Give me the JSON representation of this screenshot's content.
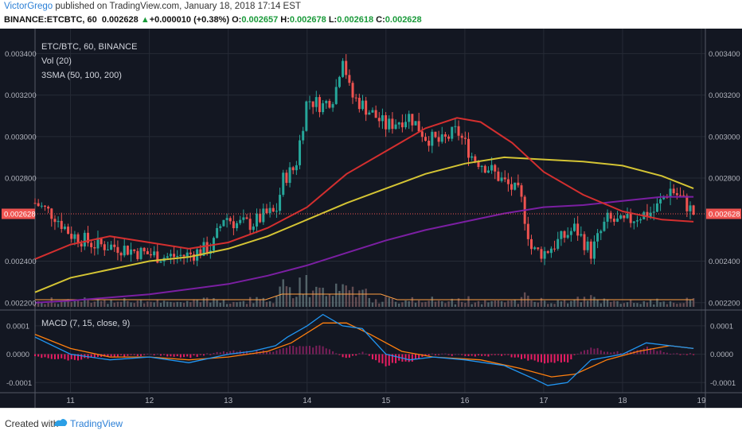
{
  "header": {
    "user": "VictorGrego",
    "published": " published on TradingView.com, January 18, 2018 17:14 EST",
    "symbol": "BINANCE:ETCBTC, 60",
    "last": "0.002628",
    "change": "+0.000010 (+0.38%)",
    "o_label": "O:",
    "o_value": "0.002657",
    "h_label": "H:",
    "h_value": "0.002678",
    "l_label": "L:",
    "l_value": "0.002618",
    "c_label": "C:",
    "c_value": "0.002628"
  },
  "legend": {
    "pair": "ETC/BTC, 60, BINANCE",
    "vol": "Vol (20)",
    "sma": "3SMA (50, 100, 200)",
    "macd": "MACD (7, 15, close, 9)"
  },
  "price_tag": "0.002628",
  "footer": {
    "created": "Created with",
    "brand": "TradingView"
  },
  "colors": {
    "background": "#131722",
    "up": "#26a69a",
    "down": "#ef5350",
    "sma50": "#d32f2f",
    "sma100": "#d4c434",
    "sma200": "#7b1fa2",
    "macd": "#2196f3",
    "signal": "#ff7f0e",
    "hist_pos": "#7b1f5a",
    "hist_neg": "#e91e63"
  },
  "chart_data": {
    "type": "candlestick",
    "price_axis": {
      "ticks": [
        "0.003400",
        "0.003200",
        "0.003000",
        "0.002800",
        "0.002400",
        "0.002200"
      ],
      "tick_values": [
        0.0034,
        0.0032,
        0.003,
        0.0028,
        0.0024,
        0.0022
      ],
      "range": [
        0.00218,
        0.00352
      ]
    },
    "macd_axis": {
      "ticks": [
        "0.0001",
        "0.0000",
        "-0.0001"
      ],
      "tick_values": [
        0.0001,
        0,
        -0.0001
      ],
      "range": [
        -0.00013,
        0.00015
      ]
    },
    "x_ticks": [
      "11",
      "12",
      "13",
      "14",
      "15",
      "16",
      "17",
      "18",
      "19"
    ],
    "x_tick_days": [
      11,
      12,
      13,
      14,
      15,
      16,
      17,
      18,
      19
    ],
    "x_range": [
      10.55,
      19.05
    ],
    "price_path": [
      [
        10.55,
        0.00268
      ],
      [
        10.8,
        0.00262
      ],
      [
        11.0,
        0.00253
      ],
      [
        11.3,
        0.00248
      ],
      [
        11.6,
        0.00247
      ],
      [
        11.9,
        0.00244
      ],
      [
        12.2,
        0.00242
      ],
      [
        12.5,
        0.00243
      ],
      [
        12.8,
        0.00247
      ],
      [
        12.95,
        0.00262
      ],
      [
        13.1,
        0.00258
      ],
      [
        13.3,
        0.00258
      ],
      [
        13.5,
        0.00263
      ],
      [
        13.6,
        0.00263
      ],
      [
        13.7,
        0.0028
      ],
      [
        13.85,
        0.00285
      ],
      [
        14.0,
        0.00318
      ],
      [
        14.2,
        0.00315
      ],
      [
        14.35,
        0.0032
      ],
      [
        14.45,
        0.0034
      ],
      [
        14.55,
        0.0032
      ],
      [
        14.8,
        0.00312
      ],
      [
        15.0,
        0.00305
      ],
      [
        15.3,
        0.0031
      ],
      [
        15.5,
        0.003
      ],
      [
        15.7,
        0.00297
      ],
      [
        15.9,
        0.00303
      ],
      [
        16.1,
        0.0029
      ],
      [
        16.3,
        0.00285
      ],
      [
        16.5,
        0.00278
      ],
      [
        16.7,
        0.00272
      ],
      [
        16.85,
        0.00245
      ],
      [
        17.0,
        0.00244
      ],
      [
        17.2,
        0.0025
      ],
      [
        17.4,
        0.00256
      ],
      [
        17.6,
        0.00244
      ],
      [
        17.8,
        0.0026
      ],
      [
        18.0,
        0.00258
      ],
      [
        18.2,
        0.00262
      ],
      [
        18.4,
        0.00264
      ],
      [
        18.6,
        0.00275
      ],
      [
        18.75,
        0.0027
      ],
      [
        18.9,
        0.00263
      ]
    ],
    "sma50": [
      [
        10.55,
        0.00241
      ],
      [
        11.0,
        0.00248
      ],
      [
        11.5,
        0.00252
      ],
      [
        12.0,
        0.00249
      ],
      [
        12.5,
        0.00246
      ],
      [
        13.0,
        0.00249
      ],
      [
        13.5,
        0.00256
      ],
      [
        14.0,
        0.00266
      ],
      [
        14.5,
        0.00282
      ],
      [
        15.0,
        0.00293
      ],
      [
        15.5,
        0.00304
      ],
      [
        15.9,
        0.00309
      ],
      [
        16.2,
        0.00307
      ],
      [
        16.6,
        0.00297
      ],
      [
        17.0,
        0.00283
      ],
      [
        17.5,
        0.00272
      ],
      [
        18.0,
        0.00264
      ],
      [
        18.5,
        0.0026
      ],
      [
        18.9,
        0.00259
      ]
    ],
    "sma100": [
      [
        10.55,
        0.00225
      ],
      [
        11.0,
        0.00232
      ],
      [
        11.5,
        0.00236
      ],
      [
        12.0,
        0.0024
      ],
      [
        12.5,
        0.00242
      ],
      [
        13.0,
        0.00246
      ],
      [
        13.5,
        0.00252
      ],
      [
        14.0,
        0.0026
      ],
      [
        14.5,
        0.00268
      ],
      [
        15.0,
        0.00275
      ],
      [
        15.5,
        0.00282
      ],
      [
        16.0,
        0.00287
      ],
      [
        16.5,
        0.0029
      ],
      [
        17.0,
        0.00289
      ],
      [
        17.5,
        0.00288
      ],
      [
        18.0,
        0.00286
      ],
      [
        18.5,
        0.00281
      ],
      [
        18.9,
        0.00275
      ]
    ],
    "sma200": [
      [
        10.55,
        0.0022
      ],
      [
        11.0,
        0.00221
      ],
      [
        12.0,
        0.00224
      ],
      [
        13.0,
        0.00229
      ],
      [
        13.5,
        0.00233
      ],
      [
        14.0,
        0.00238
      ],
      [
        14.5,
        0.00244
      ],
      [
        15.0,
        0.0025
      ],
      [
        15.5,
        0.00255
      ],
      [
        16.0,
        0.00259
      ],
      [
        16.5,
        0.00263
      ],
      [
        17.0,
        0.00266
      ],
      [
        17.5,
        0.00267
      ],
      [
        18.0,
        0.00269
      ],
      [
        18.5,
        0.00271
      ],
      [
        18.9,
        0.00271
      ]
    ],
    "macd": [
      [
        10.55,
        6e-05
      ],
      [
        11.0,
        0.0
      ],
      [
        11.5,
        -2e-05
      ],
      [
        12.0,
        -1e-05
      ],
      [
        12.5,
        -3e-05
      ],
      [
        13.0,
        0.0
      ],
      [
        13.3,
        1e-05
      ],
      [
        13.6,
        3e-05
      ],
      [
        13.75,
        6e-05
      ],
      [
        14.0,
        0.0001
      ],
      [
        14.2,
        0.00014
      ],
      [
        14.45,
        0.0001
      ],
      [
        14.7,
        9e-05
      ],
      [
        15.0,
        0.0
      ],
      [
        15.3,
        -2e-05
      ],
      [
        15.6,
        -1e-05
      ],
      [
        16.0,
        -2e-05
      ],
      [
        16.5,
        -4e-05
      ],
      [
        16.9,
        -9e-05
      ],
      [
        17.05,
        -0.00011
      ],
      [
        17.3,
        -0.0001
      ],
      [
        17.6,
        -2e-05
      ],
      [
        18.0,
        0.0
      ],
      [
        18.3,
        4e-05
      ],
      [
        18.6,
        3e-05
      ],
      [
        18.9,
        2e-05
      ]
    ],
    "signal": [
      [
        10.55,
        7e-05
      ],
      [
        11.0,
        2e-05
      ],
      [
        11.5,
        -1e-05
      ],
      [
        12.0,
        -1e-05
      ],
      [
        12.5,
        -2e-05
      ],
      [
        13.0,
        -1e-05
      ],
      [
        13.5,
        1e-05
      ],
      [
        13.8,
        4e-05
      ],
      [
        14.2,
        0.00011
      ],
      [
        14.5,
        0.00011
      ],
      [
        14.8,
        7e-05
      ],
      [
        15.2,
        1e-05
      ],
      [
        15.6,
        -1e-05
      ],
      [
        16.2,
        -2e-05
      ],
      [
        16.7,
        -5e-05
      ],
      [
        17.1,
        -8e-05
      ],
      [
        17.4,
        -7e-05
      ],
      [
        17.8,
        -2e-05
      ],
      [
        18.2,
        1e-05
      ],
      [
        18.6,
        3e-05
      ],
      [
        18.9,
        2e-05
      ]
    ]
  }
}
